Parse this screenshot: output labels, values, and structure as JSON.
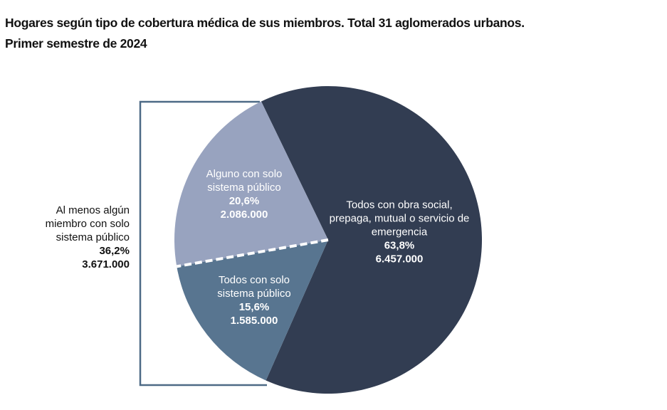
{
  "chart_data": {
    "type": "pie",
    "title": "Hogares según tipo de cobertura médica de sus miembros. Total 31 aglomerados urbanos.",
    "subtitle": "Primer semestre de 2024",
    "categories": [
      "Todos con obra social, prepaga, mutual o servicio de emergencia",
      "Todos con solo sistema público",
      "Alguno con solo sistema público"
    ],
    "values": [
      63.8,
      15.6,
      20.6
    ],
    "value_labels": [
      "63,8%",
      "15,6%",
      "20,6%"
    ],
    "counts": [
      "6.457.000",
      "1.585.000",
      "2.086.000"
    ],
    "colors": [
      "#323d52",
      "#587590",
      "#98a3bf"
    ],
    "annotation": {
      "text": "Al menos algún miembro con solo sistema público",
      "percent": "36,2%",
      "count": "3.671.000"
    }
  }
}
